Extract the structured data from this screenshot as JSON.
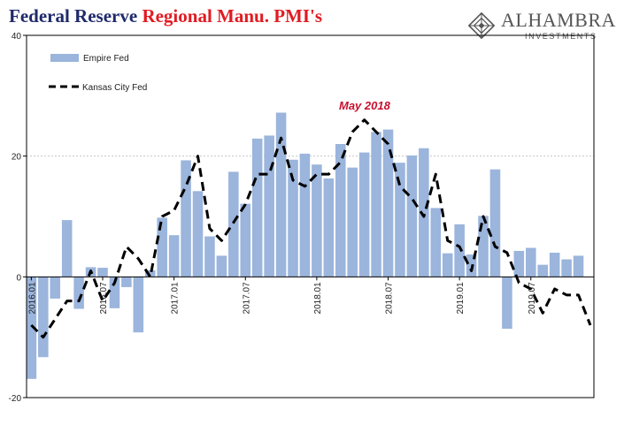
{
  "title": {
    "part1": "Federal Reserve",
    "part2": "Regional Manu. PMI's"
  },
  "logo": {
    "name": "ALHAMBRA",
    "sub": "INVESTMENTS",
    "icon": "diamond-lattice-icon"
  },
  "colors": {
    "bar": "#9bb5dc",
    "line": "#000000",
    "grid": "#bdbdbd",
    "title_blue": "#1f2a6b",
    "title_red": "#e11b22",
    "annotation": "#c8102e"
  },
  "chart_data": {
    "type": "bar",
    "ylim": [
      -20,
      40
    ],
    "yticks": [
      -20,
      0,
      20,
      40
    ],
    "grid_y": [
      20
    ],
    "categories": [
      "2016.01",
      "2016.02",
      "2016.03",
      "2016.04",
      "2016.05",
      "2016.06",
      "2016.07",
      "2016.08",
      "2016.09",
      "2016.10",
      "2016.11",
      "2016.12",
      "2017.01",
      "2017.02",
      "2017.03",
      "2017.04",
      "2017.05",
      "2017.06",
      "2017.07",
      "2017.08",
      "2017.09",
      "2017.10",
      "2017.11",
      "2017.12",
      "2018.01",
      "2018.02",
      "2018.03",
      "2018.04",
      "2018.05",
      "2018.06",
      "2018.07",
      "2018.08",
      "2018.09",
      "2018.10",
      "2018.11",
      "2018.12",
      "2019.01",
      "2019.02",
      "2019.03",
      "2019.04",
      "2019.05",
      "2019.06",
      "2019.07",
      "2019.08",
      "2019.09",
      "2019.10",
      "2019.11",
      "2019.12"
    ],
    "x_tick_labels": [
      "2016.01",
      "2016.07",
      "2017.01",
      "2017.07",
      "2018.01",
      "2018.07",
      "2019.01",
      "2019.07"
    ],
    "x_tick_indices": [
      0,
      6,
      12,
      18,
      24,
      30,
      36,
      42
    ],
    "series": [
      {
        "name": "Empire Fed",
        "type": "bar",
        "values": [
          -16.9,
          -13.3,
          -3.6,
          9.4,
          -5.3,
          1.6,
          1.5,
          -5.2,
          -1.7,
          -9.2,
          1.1,
          9.8,
          6.9,
          19.3,
          14.2,
          6.7,
          3.5,
          17.4,
          12.1,
          22.9,
          23.4,
          27.2,
          19.4,
          20.4,
          18.6,
          16.3,
          22.0,
          18.1,
          20.6,
          24.0,
          24.4,
          18.9,
          20.1,
          21.3,
          11.4,
          3.9,
          8.7,
          3.7,
          10.1,
          17.8,
          -8.6,
          4.3,
          4.8,
          2.0,
          4.0,
          2.9,
          3.5,
          null
        ]
      },
      {
        "name": "Kansas City Fed",
        "type": "line",
        "values": [
          -8,
          -10,
          -7,
          -4,
          -4,
          1,
          -4,
          -1,
          5,
          3,
          0,
          10,
          11,
          15,
          20,
          8,
          6,
          9,
          12,
          17,
          17,
          23,
          16,
          15,
          17,
          17,
          19,
          24,
          26,
          24,
          22,
          15,
          13,
          10,
          17,
          6,
          5,
          1,
          10,
          5,
          4,
          -1,
          -2,
          -6,
          -2,
          -3,
          -3,
          -8
        ]
      }
    ],
    "legend": {
      "placement": "top-left",
      "entries": [
        "Empire Fed",
        "Kansas City Fed"
      ]
    },
    "annotations": [
      {
        "text": "May 2018",
        "category": "2018.05"
      }
    ],
    "title": "Federal Reserve Regional Manu. PMI's"
  }
}
